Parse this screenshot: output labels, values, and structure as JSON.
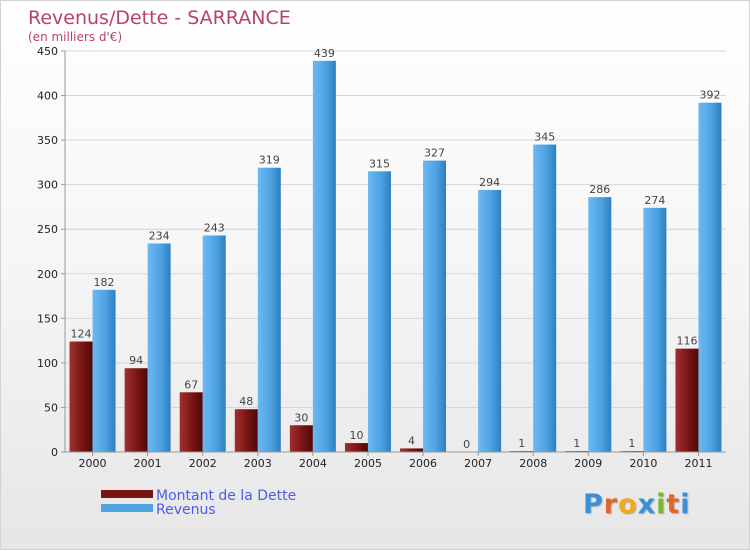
{
  "chart_data": {
    "type": "bar",
    "title": "Revenus/Dette - SARRANCE",
    "subtitle": "(en milliers d'€)",
    "categories": [
      "2000",
      "2001",
      "2002",
      "2003",
      "2004",
      "2005",
      "2006",
      "2007",
      "2008",
      "2009",
      "2010",
      "2011"
    ],
    "series": [
      {
        "name": "Montant de la Dette",
        "color": "#7a1414",
        "values": [
          124,
          94,
          67,
          48,
          30,
          10,
          4,
          0,
          1,
          1,
          1,
          116
        ],
        "labels": [
          "124",
          "94",
          "67",
          "48",
          "30",
          "10",
          "4",
          "0",
          "1",
          "1",
          "1",
          "116"
        ]
      },
      {
        "name": "Revenus",
        "color": "#4ea3e3",
        "values": [
          182,
          234,
          243,
          319,
          439,
          315,
          327,
          294,
          345,
          286,
          274,
          392
        ],
        "labels": [
          "182",
          "234",
          "243",
          "319",
          "439",
          "315",
          "327",
          "294",
          "345",
          "286",
          "274",
          "392"
        ]
      }
    ],
    "ylim": [
      0,
      450
    ],
    "yticks": [
      0,
      50,
      100,
      150,
      200,
      250,
      300,
      350,
      400,
      450
    ],
    "ytick_labels": [
      "0",
      "50",
      "100",
      "150",
      "200",
      "250",
      "300",
      "350",
      "400",
      "450"
    ],
    "grid": true,
    "legend": "bottom-left",
    "xlabel": "",
    "ylabel": ""
  },
  "logo": {
    "letters": [
      "P",
      "r",
      "o",
      "x",
      "i",
      "t",
      "i"
    ],
    "colors": [
      "#3b8fd8",
      "#e0662a",
      "#f0a81e",
      "#3b8fd8",
      "#7ab829",
      "#e0662a",
      "#3b8fd8"
    ]
  }
}
